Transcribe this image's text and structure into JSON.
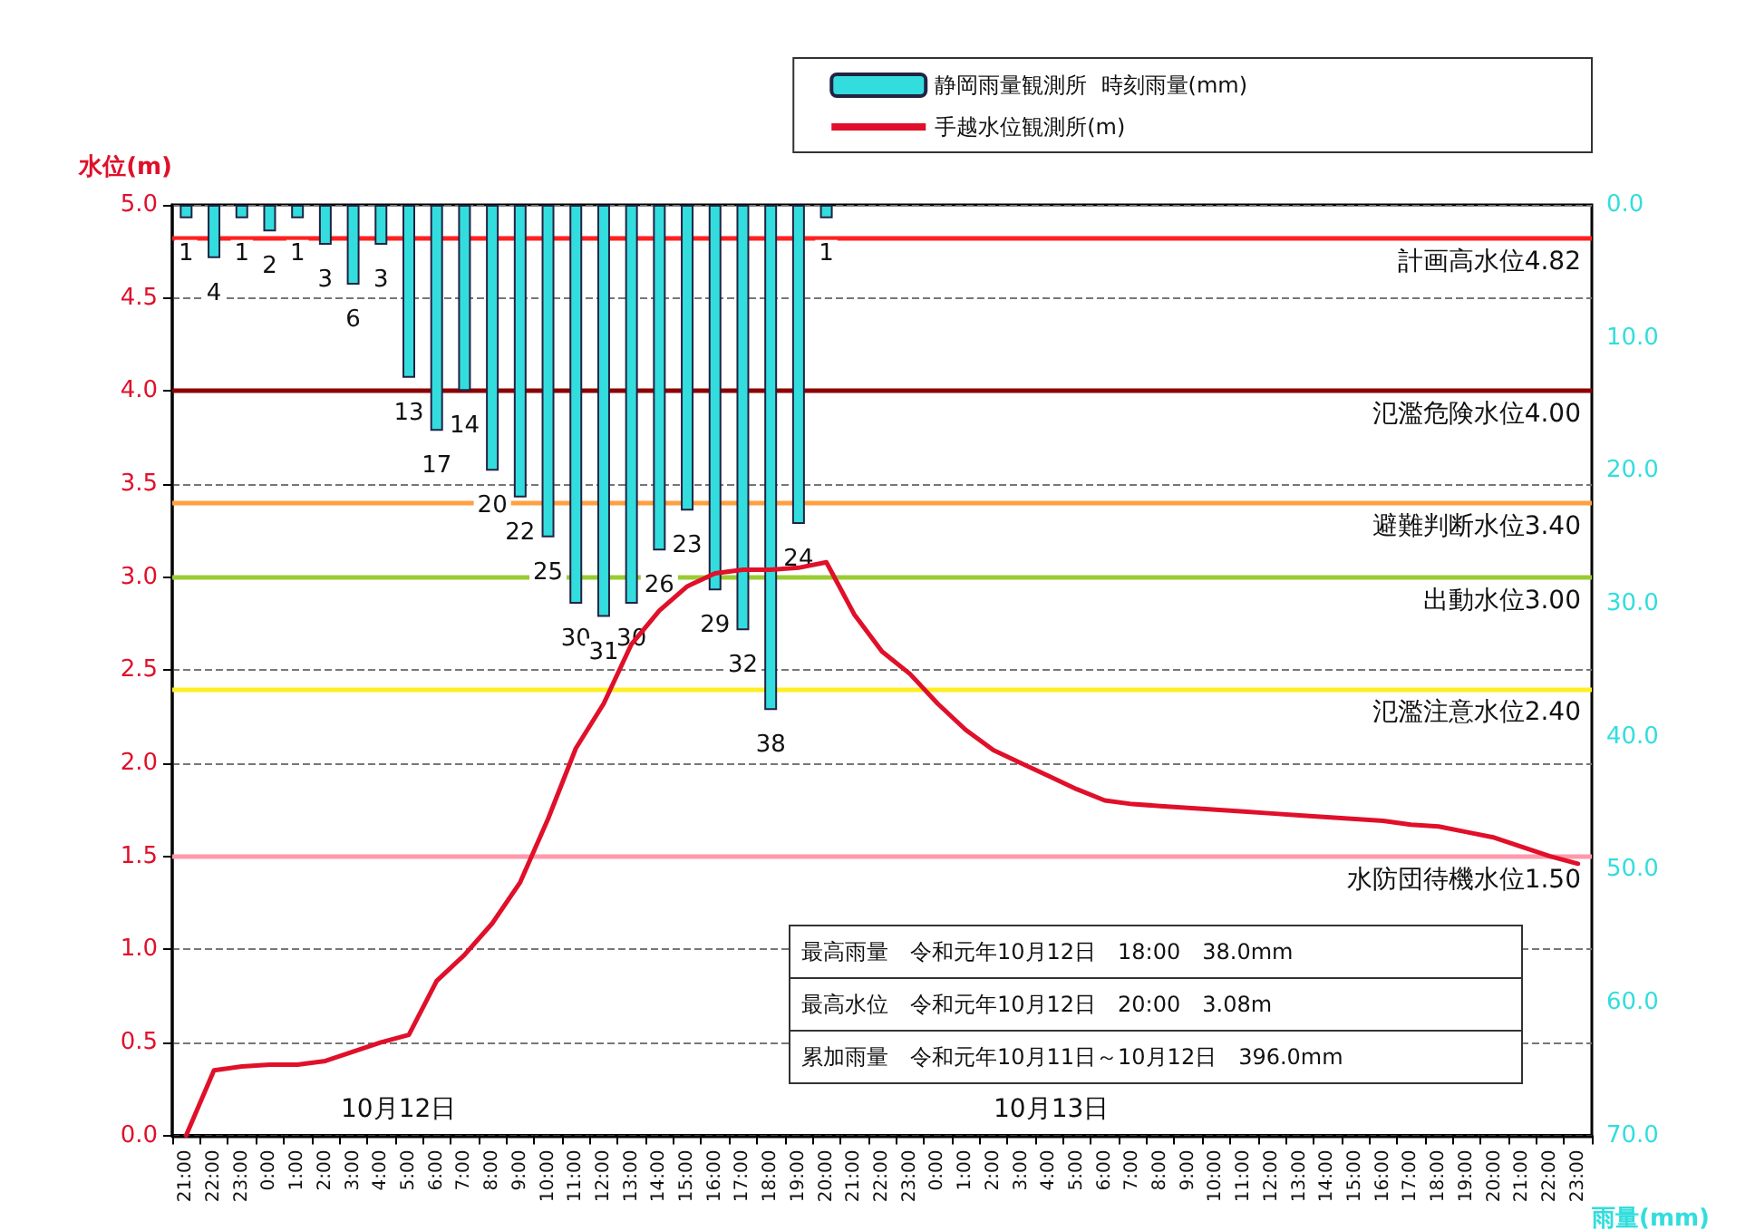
{
  "chart_data": {
    "type": "line",
    "ylabel": "水位(m)",
    "y2label": "雨量(mm)",
    "categories": [
      "21:00",
      "22:00",
      "23:00",
      "0:00",
      "1:00",
      "2:00",
      "3:00",
      "4:00",
      "5:00",
      "6:00",
      "7:00",
      "8:00",
      "9:00",
      "10:00",
      "11:00",
      "12:00",
      "13:00",
      "14:00",
      "15:00",
      "16:00",
      "17:00",
      "18:00",
      "19:00",
      "20:00",
      "21:00",
      "22:00",
      "23:00",
      "0:00",
      "1:00",
      "2:00",
      "3:00",
      "4:00",
      "5:00",
      "6:00",
      "7:00",
      "8:00",
      "9:00",
      "10:00",
      "11:00",
      "12:00",
      "13:00",
      "14:00",
      "15:00",
      "16:00",
      "17:00",
      "18:00",
      "19:00",
      "20:00",
      "21:00",
      "22:00",
      "23:00"
    ],
    "series": [
      {
        "name": "静岡雨量観測所  時刻雨量(mm)",
        "type": "bar",
        "axis": "y2",
        "color": "#33dddd",
        "data_labels": true,
        "values": [
          1,
          4,
          1,
          2,
          1,
          3,
          6,
          3,
          13,
          17,
          14,
          20,
          22,
          25,
          30,
          31,
          30,
          26,
          23,
          29,
          32,
          38,
          24,
          1,
          null,
          null,
          null,
          null,
          null,
          null,
          null,
          null,
          null,
          null,
          null,
          null,
          null,
          null,
          null,
          null,
          null,
          null,
          null,
          null,
          null,
          null,
          null,
          null,
          null,
          null,
          null
        ]
      },
      {
        "name": "手越水位観測所(m)",
        "color": "#e0102a",
        "values": [
          0.0,
          0.35,
          0.37,
          0.38,
          0.38,
          0.4,
          0.45,
          0.5,
          0.54,
          0.83,
          0.97,
          1.14,
          1.36,
          1.7,
          2.08,
          2.32,
          2.64,
          2.82,
          2.95,
          3.02,
          3.04,
          3.04,
          3.05,
          3.08,
          2.8,
          2.6,
          2.48,
          2.32,
          2.18,
          2.07,
          2.0,
          1.93,
          1.86,
          1.8,
          1.78,
          1.77,
          1.76,
          1.75,
          1.74,
          1.73,
          1.72,
          1.71,
          1.7,
          1.69,
          1.67,
          1.66,
          1.63,
          1.6,
          1.55,
          1.5,
          1.46
        ]
      }
    ],
    "ylim": [
      0,
      5
    ],
    "yticks": [
      {
        "value": 0,
        "label": "0.0"
      },
      {
        "value": 0.5,
        "label": "0.5"
      },
      {
        "value": 1,
        "label": "1.0"
      },
      {
        "value": 1.5,
        "label": "1.5"
      },
      {
        "value": 2,
        "label": "2.0"
      },
      {
        "value": 2.5,
        "label": "2.5"
      },
      {
        "value": 3,
        "label": "3.0"
      },
      {
        "value": 3.5,
        "label": "3.5"
      },
      {
        "value": 4,
        "label": "4.0"
      },
      {
        "value": 4.5,
        "label": "4.5"
      },
      {
        "value": 5,
        "label": "5.0"
      }
    ],
    "y2lim": [
      70,
      0
    ],
    "y2ticks": [
      {
        "value": 0,
        "label": "0.0"
      },
      {
        "value": 10,
        "label": "10.0"
      },
      {
        "value": 20,
        "label": "20.0"
      },
      {
        "value": 30,
        "label": "30.0"
      },
      {
        "value": 40,
        "label": "40.0"
      },
      {
        "value": 50,
        "label": "50.0"
      },
      {
        "value": 60,
        "label": "60.0"
      },
      {
        "value": 70,
        "label": "70.0"
      }
    ],
    "ref_lines": [
      {
        "axis": "y",
        "value": 4.82,
        "label": "計画高水位4.82",
        "color": "#ff2020"
      },
      {
        "axis": "y",
        "value": 4.0,
        "label": "氾濫危険水位4.00",
        "color": "#8b0000"
      },
      {
        "axis": "y",
        "value": 3.4,
        "label": "避難判断水位3.40",
        "color": "#ffa040"
      },
      {
        "axis": "y",
        "value": 3.0,
        "label": "出動水位3.00",
        "color": "#99cc33"
      },
      {
        "axis": "y",
        "value": 2.4,
        "label": "氾濫注意水位2.40",
        "color": "#ffee22"
      },
      {
        "axis": "y",
        "value": 1.5,
        "label": "水防団待機水位1.50",
        "color": "#ff99aa"
      }
    ],
    "annotations": [
      "10月12日",
      "10月13日",
      "最高雨量　令和元年10月12日　18:00　38.0mm",
      "最高水位　令和元年10月12日　20:00　3.08m",
      "累加雨量　令和元年10月11日～10月12日　396.0mm"
    ],
    "grid": "y",
    "legend": "top right",
    "marker": "none",
    "line_style": "solid"
  }
}
